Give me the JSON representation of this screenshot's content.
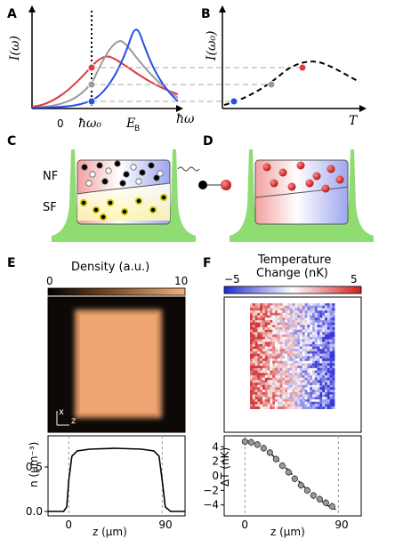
{
  "panels": {
    "A": {
      "letter": "A",
      "ylabel": "I(ω)",
      "xlabel": "ħω",
      "ticks": {
        "zero": "0",
        "omega0": "ħω₀",
        "eb": "E"
      },
      "eb_sub": "B",
      "colors": {
        "red": "#e0393e",
        "gray": "#9a9a9a",
        "blue": "#2a4ee8"
      }
    },
    "B": {
      "letter": "B",
      "ylabel": "I(ω₀)",
      "xlabel": "T"
    },
    "C": {
      "letter": "C",
      "nf": "NF",
      "sf": "SF"
    },
    "D": {
      "letter": "D"
    },
    "E": {
      "letter": "E",
      "colorbar_title": "Density (a.u.)",
      "cbar_min": "0",
      "cbar_max": "10",
      "axis_x": "x",
      "axis_z": "z",
      "ylabel": "n (μm⁻³)",
      "xlabel": "z (μm)",
      "yticks": [
        "0.0",
        "0.5"
      ],
      "xticks": [
        "0",
        "90"
      ]
    },
    "F": {
      "letter": "F",
      "colorbar_title_1": "Temperature",
      "colorbar_title_2": "Change (nK)",
      "cbar_min": "−5",
      "cbar_max": "5",
      "ylabel": "ΔT (nK)",
      "xlabel": "z (μm)",
      "yticks": [
        "4",
        "2",
        "0",
        "−2",
        "−4"
      ],
      "xticks": [
        "0",
        "90"
      ]
    }
  },
  "chart_data": [
    {
      "type": "line",
      "panel": "E-bottom",
      "xlabel": "z (μm)",
      "ylabel": "n (μm⁻³)",
      "xlim": [
        -20,
        112
      ],
      "ylim": [
        -0.05,
        0.85
      ],
      "x": [
        -20,
        -5,
        -2,
        0,
        3,
        8,
        20,
        45,
        70,
        82,
        87,
        90,
        93,
        98,
        112
      ],
      "y": [
        0.0,
        0.0,
        0.05,
        0.35,
        0.62,
        0.68,
        0.7,
        0.71,
        0.7,
        0.68,
        0.62,
        0.35,
        0.05,
        0.0,
        0.0
      ]
    },
    {
      "type": "scatter",
      "panel": "F-bottom",
      "xlabel": "z (μm)",
      "ylabel": "ΔT (nK)",
      "xlim": [
        -20,
        112
      ],
      "ylim": [
        -5.5,
        5.5
      ],
      "x": [
        0,
        6,
        12,
        18,
        24,
        30,
        36,
        42,
        48,
        54,
        60,
        66,
        72,
        78,
        84
      ],
      "y": [
        4.7,
        4.6,
        4.3,
        3.8,
        3.2,
        2.3,
        1.4,
        0.5,
        -0.4,
        -1.3,
        -2.0,
        -2.7,
        -3.2,
        -3.7,
        -4.2
      ],
      "fit_x": [
        0,
        10,
        20,
        30,
        40,
        50,
        60,
        70,
        80,
        90
      ],
      "fit_y": [
        4.9,
        4.5,
        3.6,
        2.4,
        1.0,
        -0.5,
        -1.9,
        -3.1,
        -4.1,
        -4.8
      ]
    }
  ]
}
